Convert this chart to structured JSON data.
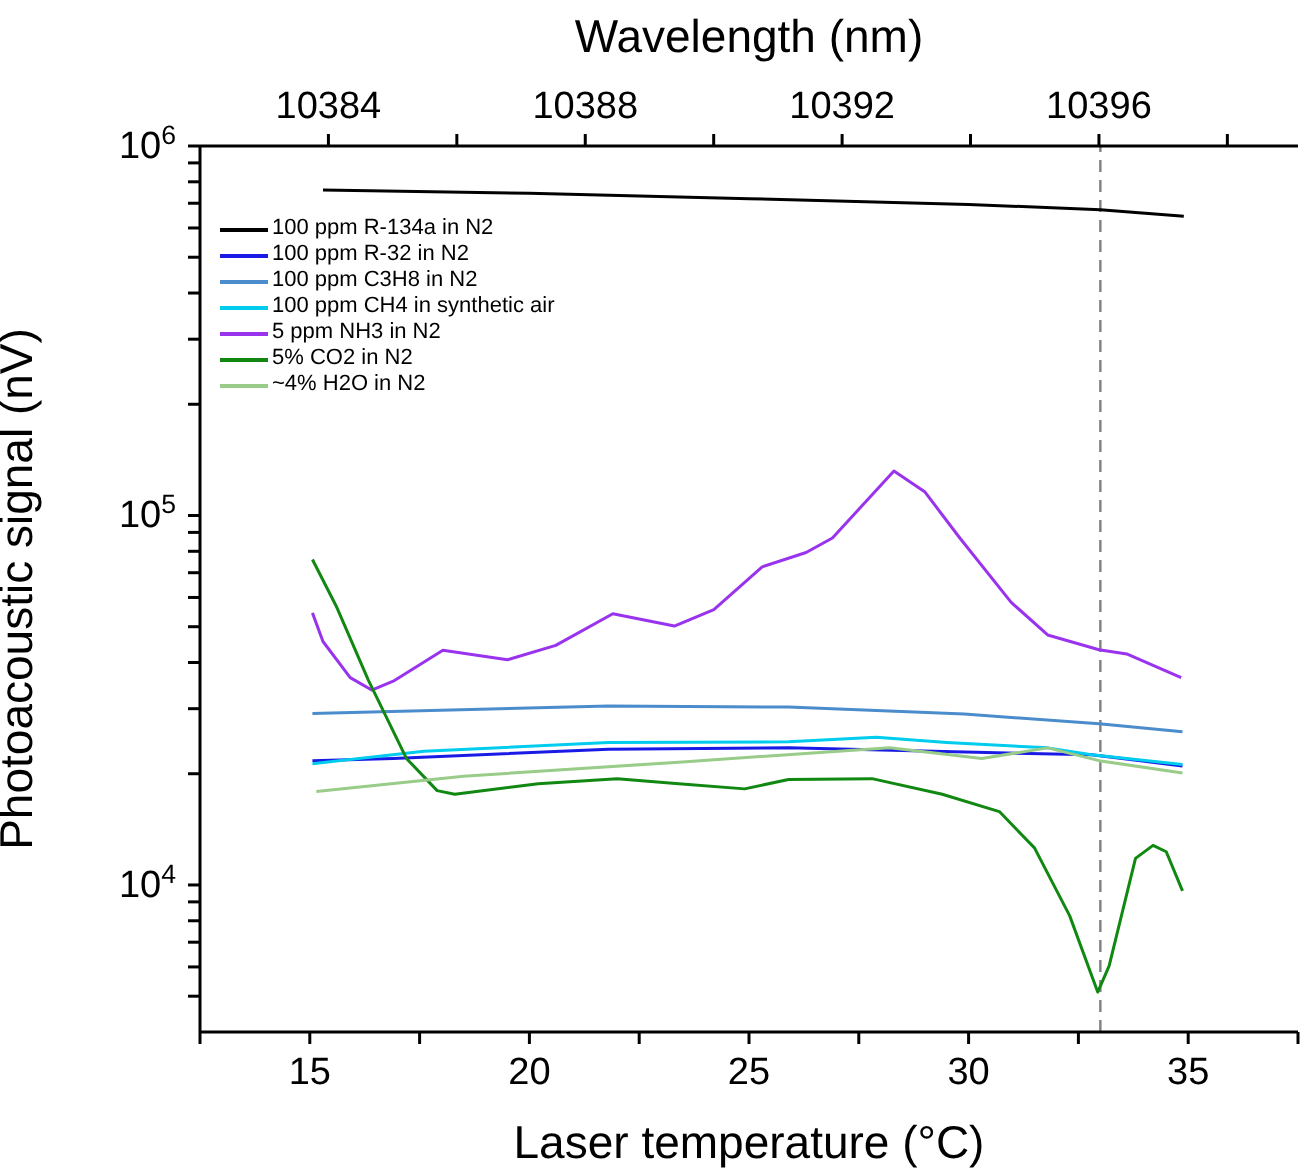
{
  "chart_data": {
    "type": "line",
    "xlabel": "Laser temperature (°C)",
    "ylabel": "Photoacoustic signal (nV)",
    "x2label": "Wavelength (nm)",
    "xlim": [
      12.5,
      37.5
    ],
    "xticks": [
      {
        "value": 12.5,
        "label": null
      },
      15,
      {
        "value": 17.5,
        "label": null
      },
      20,
      {
        "value": 22.5,
        "label": null
      },
      25,
      {
        "value": 27.5,
        "label": null
      },
      30,
      {
        "value": 32.5,
        "label": null
      },
      35,
      {
        "value": 37.5,
        "label": null
      }
    ],
    "x2lim": [
      10382,
      10399.1
    ],
    "x2ticks": [
      10384,
      {
        "value": 10386,
        "label": null
      },
      10388,
      {
        "value": 10390,
        "label": null
      },
      10392,
      {
        "value": 10394,
        "label": null
      },
      10396,
      {
        "value": 10398,
        "label": null
      }
    ],
    "ylim": [
      4000,
      1000000
    ],
    "yticks": [
      {
        "value": 5000,
        "label": null
      },
      {
        "value": 6000,
        "label": null
      },
      {
        "value": 7000,
        "label": null
      },
      {
        "value": 8000,
        "label": null
      },
      {
        "value": 9000,
        "label": null
      },
      {
        "value": 10000,
        "label": "10$^{4}$"
      },
      {
        "value": 20000,
        "label": null
      },
      {
        "value": 30000,
        "label": null
      },
      {
        "value": 40000,
        "label": null
      },
      {
        "value": 50000,
        "label": null
      },
      {
        "value": 60000,
        "label": null
      },
      {
        "value": 70000,
        "label": null
      },
      {
        "value": 80000,
        "label": null
      },
      {
        "value": 90000,
        "label": null
      },
      {
        "value": 100000,
        "label": "10$^{5}$"
      },
      {
        "value": 200000,
        "label": null
      },
      {
        "value": 300000,
        "label": null
      },
      {
        "value": 400000,
        "label": null
      },
      {
        "value": 500000,
        "label": null
      },
      {
        "value": 600000,
        "label": null
      },
      {
        "value": 700000,
        "label": null
      },
      {
        "value": 800000,
        "label": null
      },
      {
        "value": 900000,
        "label": null
      },
      {
        "value": 1000000,
        "label": "10$^{6}$"
      }
    ],
    "log": "y",
    "legend": "top left",
    "marker": "none",
    "line_style": "solid",
    "ref_lines": [
      {
        "axis": "x",
        "value": 33,
        "color": "#808080",
        "line_style": "dashed"
      }
    ],
    "series": [
      {
        "name": "100 ppm R-134a in N2",
        "color": "#000000",
        "x": [
          15.3,
          20,
          25,
          30,
          33,
          34.9
        ],
        "values": [
          760000,
          745000,
          720000,
          695000,
          672000,
          645000
        ]
      },
      {
        "name": "100 ppm R-32 in N2",
        "color": "#1a1ae6",
        "x": [
          15.06,
          16.9,
          21.8,
          25.9,
          29.2,
          32.8,
          34.87
        ],
        "values": [
          21700,
          22000,
          23300,
          23500,
          23000,
          22500,
          21000
        ]
      },
      {
        "name": "100 ppm C3H8 in N2",
        "color": "#4a8ccc",
        "x": [
          15.06,
          21.8,
          25.9,
          29.9,
          32.97,
          34.87
        ],
        "values": [
          29100,
          30500,
          30300,
          29000,
          27300,
          26000
        ]
      },
      {
        "name": "100 ppm CH4 in synthetic air",
        "color": "#00ccee",
        "x": [
          15.06,
          17.6,
          21.8,
          25.9,
          27.9,
          29.5,
          31.8,
          32.8,
          34.87
        ],
        "values": [
          21300,
          23000,
          24300,
          24400,
          25100,
          24300,
          23500,
          22500,
          21200
        ]
      },
      {
        "name": "5 ppm NH3 in N2",
        "color": "#9933ee",
        "x": [
          15.06,
          15.3,
          15.92,
          16.41,
          16.9,
          18.03,
          19.5,
          20.6,
          21.9,
          23.3,
          24.2,
          25.3,
          26.3,
          26.9,
          28.3,
          29.0,
          29.8,
          30.97,
          31.8,
          32.97,
          33.6,
          34.84
        ],
        "values": [
          54500,
          45600,
          36400,
          33700,
          35600,
          43200,
          40700,
          44500,
          54200,
          50200,
          55600,
          72600,
          79400,
          86900,
          132000,
          116000,
          86900,
          58200,
          47500,
          43300,
          42200,
          36400
        ]
      },
      {
        "name": "5% CO2 in N2",
        "color": "#118811",
        "x": [
          15.06,
          15.6,
          16.33,
          17.2,
          17.9,
          18.3,
          20.2,
          22,
          23.4,
          24.9,
          25.9,
          27.8,
          29.4,
          30.7,
          31.5,
          32.3,
          32.94,
          33.2,
          33.8,
          34.2,
          34.5,
          34.87
        ],
        "values": [
          76000,
          56900,
          35900,
          22000,
          18000,
          17600,
          18800,
          19400,
          18800,
          18200,
          19300,
          19400,
          17600,
          15800,
          12600,
          8260,
          5130,
          6040,
          11800,
          12800,
          12300,
          9640
        ]
      },
      {
        "name": "~4% H2O in N2",
        "color": "#99cc88",
        "x": [
          15.15,
          18.5,
          23.4,
          28.2,
          30.3,
          31.8,
          32.97,
          34.87
        ],
        "values": [
          17900,
          19700,
          21500,
          23500,
          22000,
          23500,
          21700,
          20100
        ]
      }
    ]
  }
}
